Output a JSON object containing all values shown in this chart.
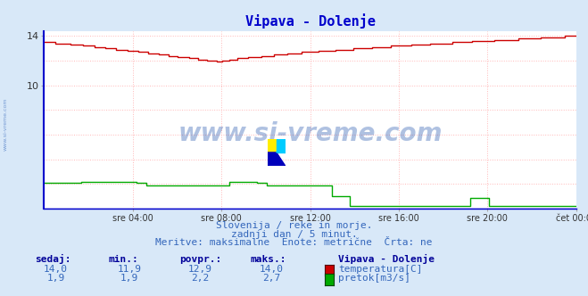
{
  "title": "Vipava - Dolenje",
  "title_color": "#0000cc",
  "title_fontsize": 11,
  "bg_color": "#d8e8f8",
  "plot_bg_color": "#ffffff",
  "grid_color": "#ffb0b0",
  "xlabel_ticks": [
    "sre 04:00",
    "sre 08:00",
    "sre 12:00",
    "sre 16:00",
    "sre 20:00",
    "čet 00:00"
  ],
  "ylim": [
    0,
    14.4
  ],
  "yticks": [
    10,
    14
  ],
  "temp_color": "#cc0000",
  "flow_color": "#00aa00",
  "border_color": "#0000cc",
  "watermark_text": "www.si-vreme.com",
  "watermark_color": "#1a4faa",
  "footer_line1": "Slovenija / reke in morje.",
  "footer_line2": "zadnji dan / 5 minut.",
  "footer_line3": "Meritve: maksimalne  Enote: metrične  Črta: ne",
  "footer_color": "#3366bb",
  "footer_fontsize": 8,
  "legend_title": "Vipava - Dolenje",
  "legend_labels": [
    "temperatura[C]",
    "pretok[m3/s]"
  ],
  "legend_colors": [
    "#cc0000",
    "#00aa00"
  ],
  "stats_headers": [
    "sedaj:",
    "min.:",
    "povpr.:",
    "maks.:"
  ],
  "stats_temp": [
    "14,0",
    "11,9",
    "12,9",
    "14,0"
  ],
  "stats_flow": [
    "1,9",
    "1,9",
    "2,2",
    "2,7"
  ],
  "stats_color": "#3366bb",
  "stats_header_color": "#000099",
  "left_label": "www.si-vreme.com",
  "left_label_color": "#3366bb"
}
